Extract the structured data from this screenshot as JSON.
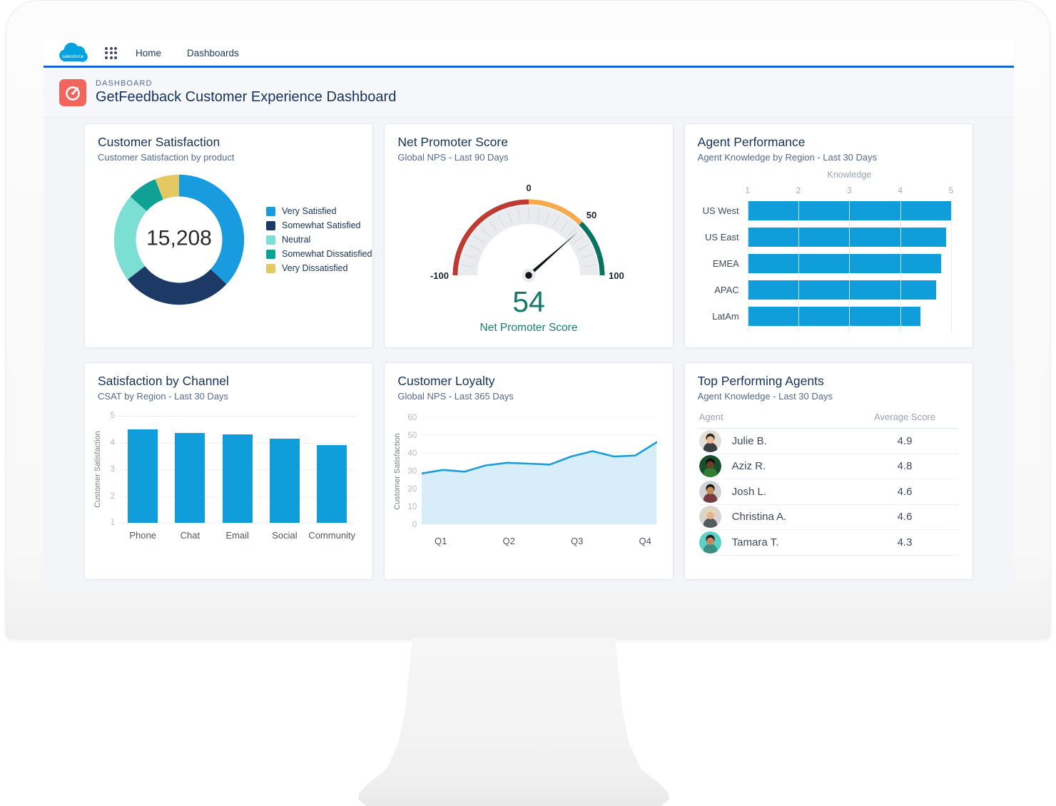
{
  "nav": {
    "brand": "salesforce",
    "items": [
      {
        "label": "Home"
      },
      {
        "label": "Dashboards"
      }
    ]
  },
  "header": {
    "eyebrow": "DASHBOARD",
    "title": "GetFeedback Customer Experience Dashboard"
  },
  "colors": {
    "nav_underline": "#1464d1",
    "brand_blue": "#00a1e0",
    "icon_coral": "#f0655c",
    "navy_text": "#16325c",
    "subtitle_gray": "#54698d",
    "chart_blue": "#0f9ed9",
    "teal_text": "#137a68"
  },
  "panels": {
    "customer_satisfaction": {
      "title": "Customer Satisfaction",
      "subtitle": "Customer Satisfaction by product",
      "total": "15,208"
    },
    "nps": {
      "title": "Net Promoter Score",
      "subtitle": "Global NPS - Last 90 Days",
      "value": "54",
      "caption": "Net Promoter Score"
    },
    "agent_performance": {
      "title": "Agent Performance",
      "subtitle": "Agent Knowledge by Region - Last 30 Days",
      "axis_title": "Knowledge"
    },
    "satisfaction_by_channel": {
      "title": "Satisfaction by Channel",
      "subtitle": "CSAT by Region - Last 30 Days",
      "ylabel": "Customer Satisfaction"
    },
    "customer_loyalty": {
      "title": "Customer Loyalty",
      "subtitle": "Global NPS - Last 365 Days",
      "ylabel": "Customer Satisfaction"
    },
    "top_agents": {
      "title": "Top Performing Agents",
      "subtitle": "Agent Knowledge - Last 30 Days",
      "columns": [
        "Agent",
        "Average Score"
      ]
    }
  },
  "chart_data": [
    {
      "type": "pie",
      "donut": true,
      "title": "Customer Satisfaction",
      "center_total": 15208,
      "labels": [
        "Very Satisfied",
        "Somewhat Satisfied",
        "Neutral",
        "Somewhat Dissatisfied",
        "Very Dissatisfied"
      ],
      "values_pct": [
        37,
        27.5,
        22,
        7.5,
        6
      ],
      "colors": [
        "#189cdf",
        "#1d3a67",
        "#7cdfd3",
        "#0fa294",
        "#e4c862"
      ]
    },
    {
      "type": "gauge",
      "title": "Net Promoter Score",
      "value": 54,
      "min": -100,
      "max": 100,
      "tick_labels": [
        "-100",
        "0",
        "50",
        "100"
      ],
      "bands": [
        {
          "from": -100,
          "to": 0,
          "color": "#bf3a32"
        },
        {
          "from": 0,
          "to": 50,
          "color": "#f6a94e"
        },
        {
          "from": 50,
          "to": 100,
          "color": "#077360"
        }
      ]
    },
    {
      "type": "bar",
      "orientation": "horizontal",
      "title": "Agent Performance",
      "xlabel": "Knowledge",
      "categories": [
        "US West",
        "US East",
        "EMEA",
        "APAC",
        "LatAm"
      ],
      "values": [
        5.0,
        4.9,
        4.8,
        4.7,
        4.4
      ],
      "xlim": [
        1,
        5
      ],
      "xticks": [
        1,
        2,
        3,
        4,
        5
      ],
      "color": "#0f9ed9"
    },
    {
      "type": "bar",
      "orientation": "vertical",
      "title": "Satisfaction by Channel",
      "ylabel": "Customer Satisfaction",
      "categories": [
        "Phone",
        "Chat",
        "Email",
        "Social",
        "Community"
      ],
      "values": [
        4.5,
        4.35,
        4.3,
        4.15,
        3.9
      ],
      "ylim": [
        1,
        5
      ],
      "yticks": [
        1,
        2,
        3,
        4,
        5
      ],
      "color": "#0f9ed9"
    },
    {
      "type": "area",
      "title": "Customer Loyalty",
      "ylabel": "Customer Satisfaction",
      "x_labels": [
        "Q1",
        "Q2",
        "Q3",
        "Q4"
      ],
      "x_label_pos_pct": [
        8,
        37,
        66,
        95
      ],
      "values": [
        28.5,
        30.5,
        29.5,
        33,
        34.5,
        34,
        33.5,
        38,
        41,
        38,
        38.5,
        46
      ],
      "ylim": [
        0,
        60
      ],
      "yticks": [
        0,
        10,
        20,
        30,
        40,
        50,
        60
      ],
      "line_color": "#1e9cd7",
      "fill_color": "#d7eefa"
    },
    {
      "type": "table",
      "title": "Top Performing Agents",
      "columns": [
        "Agent",
        "Average Score"
      ],
      "rows": [
        {
          "name": "Julie B.",
          "score": "4.9",
          "avatar": {
            "bg": "#e3ded8",
            "skin": "#eab996",
            "hair": "#2e2620",
            "shirt": "#3a3f44"
          }
        },
        {
          "name": "Aziz R.",
          "score": "4.8",
          "avatar": {
            "bg": "#174f2b",
            "skin": "#6b4226",
            "hair": "#120d09",
            "shirt": "#2e7d32"
          }
        },
        {
          "name": "Josh L.",
          "score": "4.6",
          "avatar": {
            "bg": "#cfd3d6",
            "skin": "#c68a57",
            "hair": "#1d1713",
            "shirt": "#7a3b41"
          }
        },
        {
          "name": "Christina A.",
          "score": "4.6",
          "avatar": {
            "bg": "#d9d4cd",
            "skin": "#e8b28c",
            "hair": "#e8d9a8",
            "shirt": "#555a5f"
          }
        },
        {
          "name": "Tamara T.",
          "score": "4.3",
          "avatar": {
            "bg": "#5bd0c8",
            "skin": "#c8895a",
            "hair": "#241c16",
            "shirt": "#3b8f84"
          }
        }
      ]
    }
  ]
}
